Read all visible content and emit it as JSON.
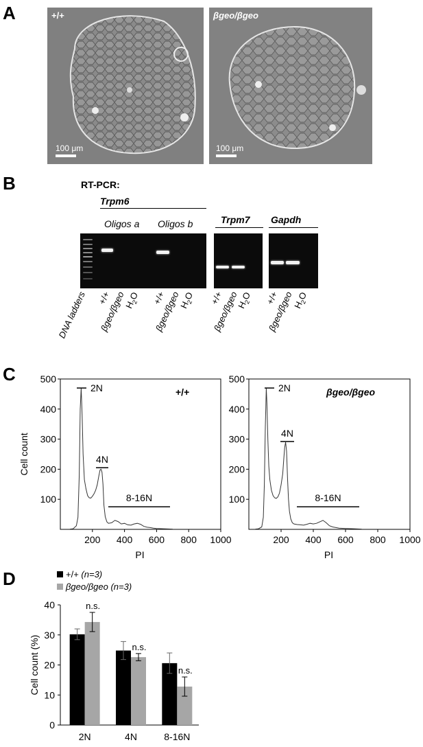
{
  "panels": {
    "A": "A",
    "B": "B",
    "C": "C",
    "D": "D"
  },
  "panelA": {
    "left_genotype": "+/+",
    "right_genotype": "βgeo/βgeo",
    "scale_label": "100 μm"
  },
  "panelB": {
    "title": "RT-PCR:",
    "trpm6": "Trpm6",
    "oligos_a": "Oligos a",
    "oligos_b": "Oligos b",
    "trpm7": "Trpm7",
    "gapdh": "Gapdh",
    "lane_labels": {
      "ladder": "DNA ladders",
      "wt": "+/+",
      "ko": "βgeo/βgeo",
      "h2o_h": "H",
      "h2o_sub": "2",
      "h2o_o": "O"
    }
  },
  "chart_data": [
    {
      "type": "line",
      "panel": "C-left",
      "genotype": "+/+",
      "ylabel": "Cell count",
      "xlabel": "PI",
      "xlim": [
        0,
        1000
      ],
      "ylim": [
        0,
        500
      ],
      "xticks": [
        200,
        400,
        600,
        800,
        1000
      ],
      "yticks": [
        100,
        200,
        300,
        400,
        500
      ],
      "annotations": [
        "2N",
        "4N",
        "8-16N"
      ],
      "x": [
        60,
        80,
        100,
        110,
        118,
        124,
        130,
        136,
        142,
        150,
        160,
        170,
        180,
        190,
        200,
        210,
        220,
        230,
        240,
        248,
        254,
        260,
        266,
        272,
        280,
        290,
        300,
        320,
        340,
        360,
        380,
        400,
        420,
        440,
        460,
        480,
        500,
        520,
        540,
        560,
        580,
        600,
        640,
        700
      ],
      "y": [
        1,
        2,
        12,
        40,
        180,
        400,
        470,
        380,
        250,
        165,
        135,
        112,
        105,
        104,
        110,
        118,
        130,
        148,
        178,
        198,
        200,
        190,
        150,
        80,
        42,
        25,
        20,
        22,
        30,
        26,
        18,
        20,
        15,
        14,
        18,
        20,
        17,
        10,
        7,
        6,
        4,
        3,
        2,
        1
      ]
    },
    {
      "type": "line",
      "panel": "C-right",
      "genotype": "βgeo/βgeo",
      "ylabel": "",
      "xlabel": "PI",
      "xlim": [
        0,
        1000
      ],
      "ylim": [
        0,
        500
      ],
      "xticks": [
        200,
        400,
        600,
        800,
        1000
      ],
      "yticks": [
        100,
        200,
        300,
        400,
        500
      ],
      "annotations": [
        "2N",
        "4N",
        "8-16N"
      ],
      "x": [
        40,
        60,
        80,
        90,
        96,
        102,
        108,
        112,
        118,
        124,
        130,
        140,
        150,
        160,
        170,
        180,
        190,
        200,
        210,
        216,
        222,
        228,
        234,
        240,
        246,
        252,
        260,
        270,
        280,
        300,
        320,
        340,
        360,
        380,
        400,
        420,
        440,
        460,
        480,
        500,
        520,
        540,
        560,
        600,
        650,
        700
      ],
      "y": [
        1,
        2,
        8,
        40,
        150,
        340,
        470,
        420,
        300,
        210,
        165,
        130,
        112,
        105,
        103,
        108,
        120,
        148,
        185,
        230,
        272,
        290,
        260,
        170,
        100,
        60,
        35,
        22,
        18,
        16,
        15,
        14,
        17,
        20,
        18,
        20,
        25,
        30,
        22,
        12,
        8,
        6,
        4,
        3,
        2,
        1
      ]
    },
    {
      "type": "bar",
      "panel": "D",
      "categories": [
        "2N",
        "4N",
        "8-16N"
      ],
      "ylabel": "Cell count (%)",
      "ylim": [
        0,
        40
      ],
      "yticks": [
        0,
        10,
        20,
        30,
        40
      ],
      "legend": "top-left",
      "series": [
        {
          "name": "+/+",
          "n": "(n=3)",
          "color": "#000000",
          "values": [
            30.2,
            24.8,
            20.6
          ],
          "errors": [
            1.8,
            3.0,
            3.4
          ]
        },
        {
          "name": "βgeo/βgeo",
          "n": "(n=3)",
          "color": "#a6a6a6",
          "values": [
            34.3,
            22.6,
            12.8
          ],
          "errors": [
            3.2,
            1.2,
            3.2
          ]
        }
      ],
      "annotations": [
        "n.s.",
        "n.s.",
        "n.s."
      ]
    }
  ]
}
